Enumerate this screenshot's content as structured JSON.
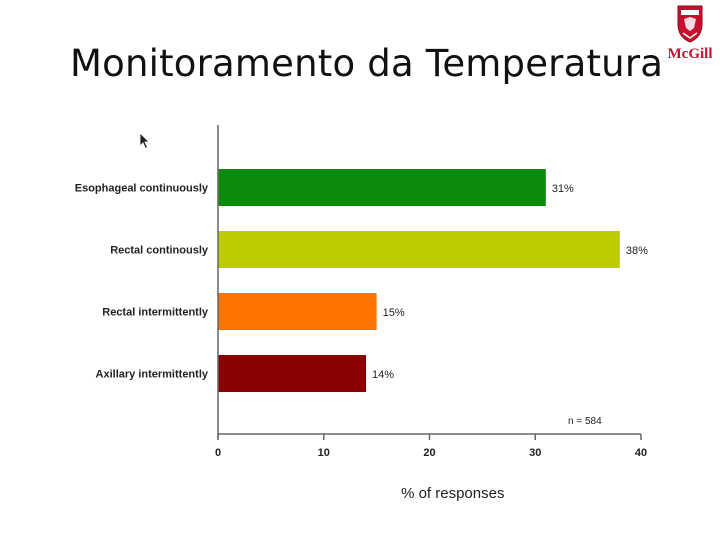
{
  "slide": {
    "title": "Monitoramento da Temperatura",
    "logo": {
      "text": "McGill",
      "icon": "mcgill-shield-icon",
      "color": "#c8102e"
    }
  },
  "chart_data": {
    "type": "bar",
    "orientation": "horizontal",
    "categories": [
      "Esophageal continuously",
      "Rectal continously",
      "Rectal intermittently",
      "Axillary intermittently"
    ],
    "values": [
      31,
      38,
      15,
      14
    ],
    "value_labels": [
      "31%",
      "38%",
      "15%",
      "14%"
    ],
    "colors": [
      "#0b8a0b",
      "#bdcc00",
      "#ff7300",
      "#8b0000"
    ],
    "xlabel": "% of responses",
    "xlim": [
      0,
      40
    ],
    "xticks": [
      0,
      10,
      20,
      30,
      40
    ],
    "annotation": "n = 584",
    "grid": false,
    "legend": "none"
  }
}
